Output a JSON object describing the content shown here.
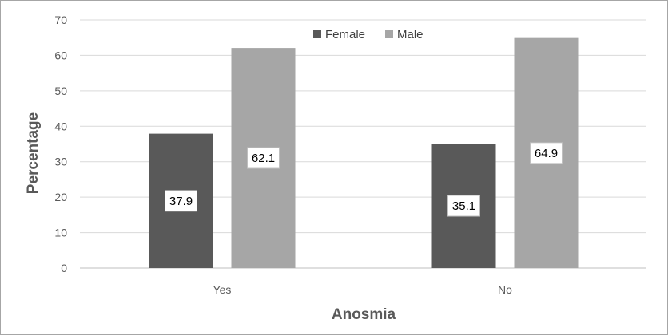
{
  "chart_data": {
    "type": "bar",
    "xlabel": "Anosmia",
    "ylabel": "Percentage",
    "categories": [
      "Yes",
      "No"
    ],
    "series": [
      {
        "name": "Female",
        "values": [
          37.9,
          35.1
        ],
        "color": "#595959"
      },
      {
        "name": "Male",
        "values": [
          62.1,
          64.9
        ],
        "color": "#a6a6a6"
      }
    ],
    "ylim": [
      0,
      70
    ],
    "yticks": [
      "0",
      "10",
      "20",
      "30",
      "40",
      "50",
      "60",
      "70"
    ],
    "grid": true,
    "legend_position": "top-center",
    "data_labels": [
      "37.9",
      "62.1",
      "35.1",
      "64.9"
    ]
  }
}
